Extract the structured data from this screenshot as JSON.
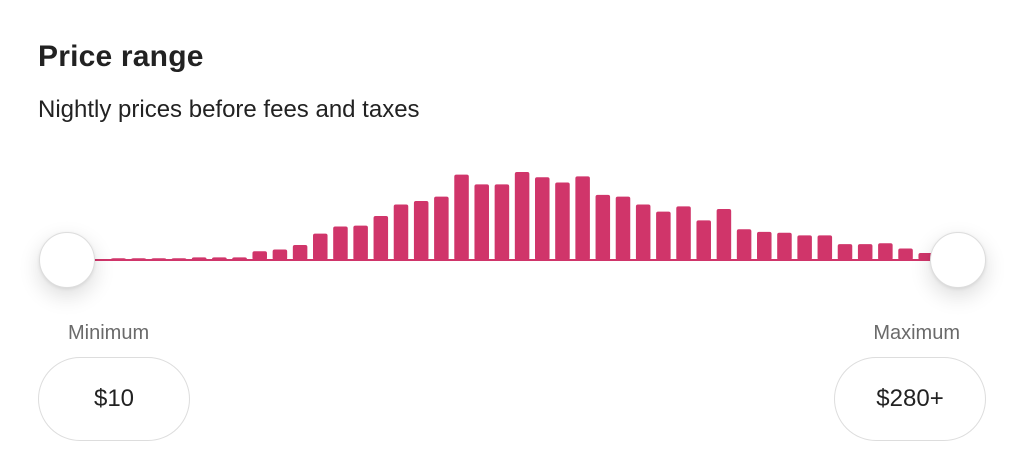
{
  "price_filter": {
    "title": "Price range",
    "subtitle": "Nightly prices before fees and taxes",
    "accent_color": "#D0356A",
    "minimum": {
      "label": "Minimum",
      "value": "$10"
    },
    "maximum": {
      "label": "Maximum",
      "value": "$280+"
    },
    "slider": {
      "min_position": 0,
      "max_position": 1
    }
  },
  "chart_data": {
    "type": "bar",
    "title": "",
    "xlabel": "",
    "ylabel": "",
    "ylim": [
      0,
      100
    ],
    "values": [
      1,
      1,
      2,
      2,
      2,
      2,
      3,
      3,
      3,
      10,
      12,
      17,
      30,
      38,
      39,
      50,
      63,
      67,
      72,
      97,
      86,
      86,
      100,
      94,
      88,
      95,
      74,
      72,
      63,
      55,
      61,
      45,
      58,
      35,
      32,
      31,
      28,
      28,
      18,
      18,
      19,
      13,
      8,
      4
    ]
  }
}
